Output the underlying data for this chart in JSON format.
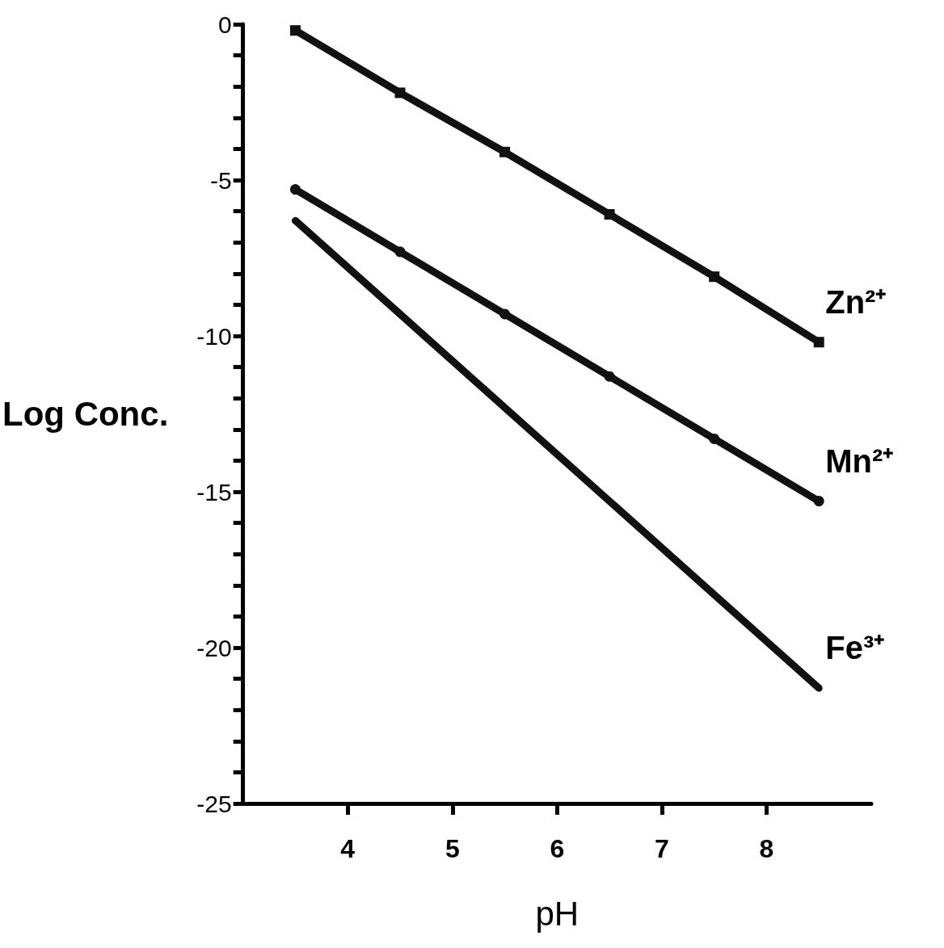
{
  "chart_data": {
    "type": "line",
    "xlabel": "pH",
    "ylabel": "Log Conc.",
    "xlim": [
      3,
      9
    ],
    "xticks": [
      4,
      5,
      6,
      7,
      8
    ],
    "ylim": [
      -25,
      0
    ],
    "yticks": [
      0,
      {
        "value": -1,
        "label": null
      },
      {
        "value": -2,
        "label": null
      },
      {
        "value": -3,
        "label": null
      },
      {
        "value": -4,
        "label": null
      },
      -5,
      {
        "value": -6,
        "label": null
      },
      {
        "value": -7,
        "label": null
      },
      {
        "value": -8,
        "label": null
      },
      {
        "value": -9,
        "label": null
      },
      -10,
      {
        "value": -11,
        "label": null
      },
      {
        "value": -12,
        "label": null
      },
      {
        "value": -13,
        "label": null
      },
      {
        "value": -14,
        "label": null
      },
      -15,
      {
        "value": -16,
        "label": null
      },
      {
        "value": -17,
        "label": null
      },
      {
        "value": -18,
        "label": null
      },
      {
        "value": -19,
        "label": null
      },
      -20,
      {
        "value": -21,
        "label": null
      },
      {
        "value": -22,
        "label": null
      },
      {
        "value": -23,
        "label": null
      },
      {
        "value": -24,
        "label": null
      },
      -25
    ],
    "grid": false,
    "legend": false,
    "line_style": "solid",
    "series": [
      {
        "name": "Zn²⁺",
        "color": "#111111",
        "marker": "square",
        "x": [
          3.5,
          4.5,
          5.5,
          6.5,
          7.5,
          8.5
        ],
        "values": [
          -0.2,
          -2.2,
          -4.1,
          -6.1,
          -8.1,
          -10.2
        ]
      },
      {
        "name": "Mn²⁺",
        "color": "#111111",
        "marker": "circle",
        "x": [
          3.5,
          4.5,
          5.5,
          6.5,
          7.5,
          8.5
        ],
        "values": [
          -5.3,
          -7.3,
          -9.3,
          -11.3,
          -13.3,
          -15.3
        ]
      },
      {
        "name": "Fe³⁺",
        "color": "#111111",
        "marker": "none",
        "x": [
          3.5,
          8.5
        ],
        "values": [
          -6.3,
          -21.3
        ]
      }
    ]
  }
}
